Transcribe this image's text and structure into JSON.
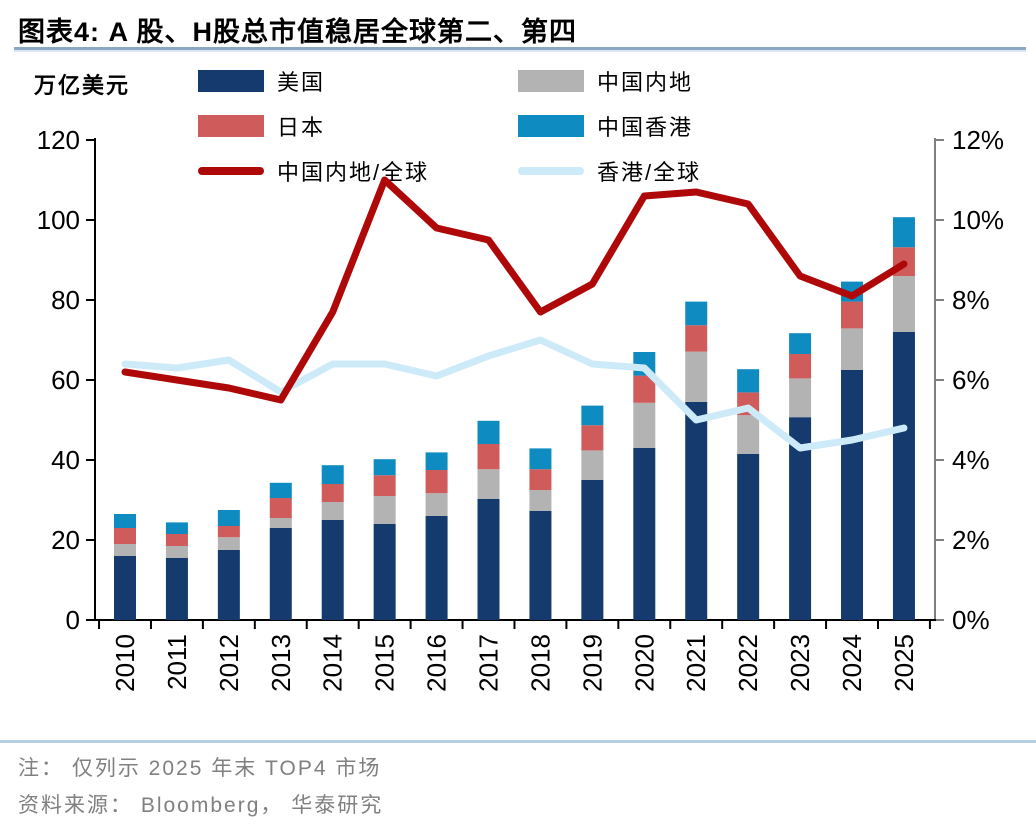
{
  "header": {
    "title": "图表4:  A 股、H股总市值稳居全球第二、第四"
  },
  "legend": {
    "items": [
      {
        "label": "美国",
        "type": "bar",
        "color": "#153A6D"
      },
      {
        "label": "中国内地",
        "type": "bar",
        "color": "#B3B3B3"
      },
      {
        "label": "日本",
        "type": "bar",
        "color": "#CF5B5B"
      },
      {
        "label": "中国香港",
        "type": "bar",
        "color": "#0E8BC1"
      },
      {
        "label": "中国内地/全球",
        "type": "line",
        "color": "#AF0809"
      },
      {
        "label": "香港/全球",
        "type": "line",
        "color": "#CDEAF9"
      }
    ]
  },
  "footer": {
    "note": "注： 仅列示 2025 年末 TOP4 市场",
    "source": "资料来源： Bloomberg， 华泰研究"
  },
  "colors": {
    "axis": "#000000",
    "right_axis": "#7F7F7F",
    "title_rule_dark": "#8CA7C5",
    "title_rule_light": "#DCE6F0",
    "footer_rule": "#B7CFE2",
    "note_text": "#808080"
  },
  "chart_data": {
    "type": "combo-stacked-bar-line",
    "title": "A股、H股总市值稳居全球第二、第四",
    "categories": [
      "2010",
      "2011",
      "2012",
      "2013",
      "2014",
      "2015",
      "2016",
      "2017",
      "2018",
      "2019",
      "2020",
      "2021",
      "2022",
      "2023",
      "2024",
      "2025"
    ],
    "left_axis": {
      "unit": "万亿美元",
      "min": 0,
      "max": 120,
      "ticks": [
        0,
        20,
        40,
        60,
        80,
        100,
        120
      ]
    },
    "right_axis": {
      "min": 0,
      "max": 12,
      "ticks": [
        0,
        2,
        4,
        6,
        8,
        10,
        12
      ],
      "suffix": "%"
    },
    "grid": false,
    "legend_position": "top",
    "bar_series": [
      {
        "name": "美国",
        "color": "#153A6D",
        "values": [
          16.0,
          15.5,
          17.5,
          23.0,
          25.0,
          24.0,
          26.0,
          30.3,
          27.3,
          35.0,
          43.0,
          54.5,
          41.5,
          50.7,
          62.5,
          72.0
        ]
      },
      {
        "name": "中国内地",
        "color": "#B3B3B3",
        "values": [
          3.0,
          3.0,
          3.2,
          2.5,
          4.5,
          7.0,
          5.7,
          7.4,
          5.2,
          7.4,
          11.3,
          12.6,
          9.7,
          9.7,
          10.4,
          14.0
        ]
      },
      {
        "name": "日本",
        "color": "#CF5B5B",
        "values": [
          4.0,
          3.0,
          2.8,
          5.0,
          4.5,
          5.2,
          5.8,
          6.3,
          5.2,
          6.3,
          6.8,
          6.6,
          5.7,
          6.1,
          6.7,
          7.2
        ]
      },
      {
        "name": "中国香港",
        "color": "#0E8BC1",
        "values": [
          3.5,
          2.9,
          4.0,
          3.8,
          4.7,
          4.0,
          4.4,
          5.8,
          5.2,
          4.9,
          5.9,
          5.9,
          5.8,
          5.2,
          5.0,
          7.5
        ]
      }
    ],
    "line_series": [
      {
        "name": "香港/全球",
        "color": "#CDEAF9",
        "axis": "right",
        "values": [
          6.4,
          6.3,
          6.5,
          5.7,
          6.4,
          6.4,
          6.1,
          6.6,
          7.0,
          6.4,
          6.3,
          5.0,
          5.3,
          4.3,
          4.5,
          4.8
        ]
      },
      {
        "name": "中国内地/全球",
        "color": "#AF0809",
        "axis": "right",
        "values": [
          6.2,
          6.0,
          5.8,
          5.5,
          7.7,
          11.0,
          9.8,
          9.5,
          7.7,
          8.4,
          10.6,
          10.7,
          10.4,
          8.6,
          8.1,
          8.9
        ]
      }
    ]
  }
}
